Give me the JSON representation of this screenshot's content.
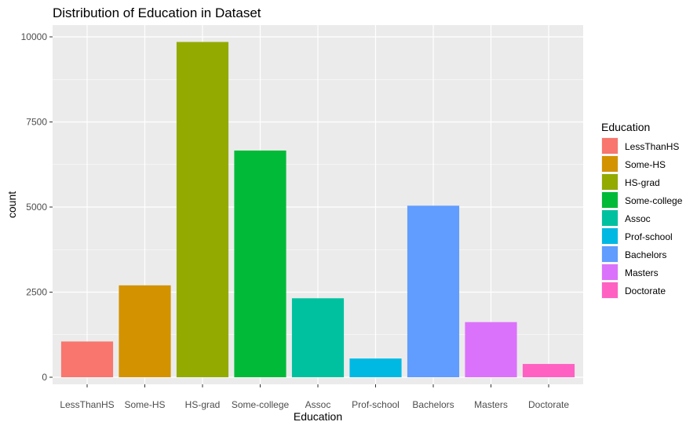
{
  "chart_data": {
    "type": "bar",
    "title": "Distribution of Education in Dataset",
    "xlabel": "Education",
    "ylabel": "count",
    "categories": [
      "LessThanHS",
      "Some-HS",
      "HS-grad",
      "Some-college",
      "Assoc",
      "Prof-school",
      "Bachelors",
      "Masters",
      "Doctorate"
    ],
    "values": [
      1050,
      2700,
      9850,
      6660,
      2320,
      550,
      5040,
      1620,
      390
    ],
    "colors": [
      "#F8766D",
      "#D39200",
      "#93AA00",
      "#00BA38",
      "#00C19F",
      "#00B9E3",
      "#619CFF",
      "#DB72FB",
      "#FF61C3"
    ],
    "ylim": [
      0,
      10000
    ],
    "yticks": [
      0,
      2500,
      5000,
      7500,
      10000
    ],
    "ytick_labels": [
      "0",
      "2500",
      "5000",
      "7500",
      "10000"
    ],
    "grid": true,
    "panel_background": "#EBEBEB",
    "legend": {
      "title": "Education",
      "placement": "right",
      "entries": [
        "LessThanHS",
        "Some-HS",
        "HS-grad",
        "Some-college",
        "Assoc",
        "Prof-school",
        "Bachelors",
        "Masters",
        "Doctorate"
      ]
    }
  }
}
